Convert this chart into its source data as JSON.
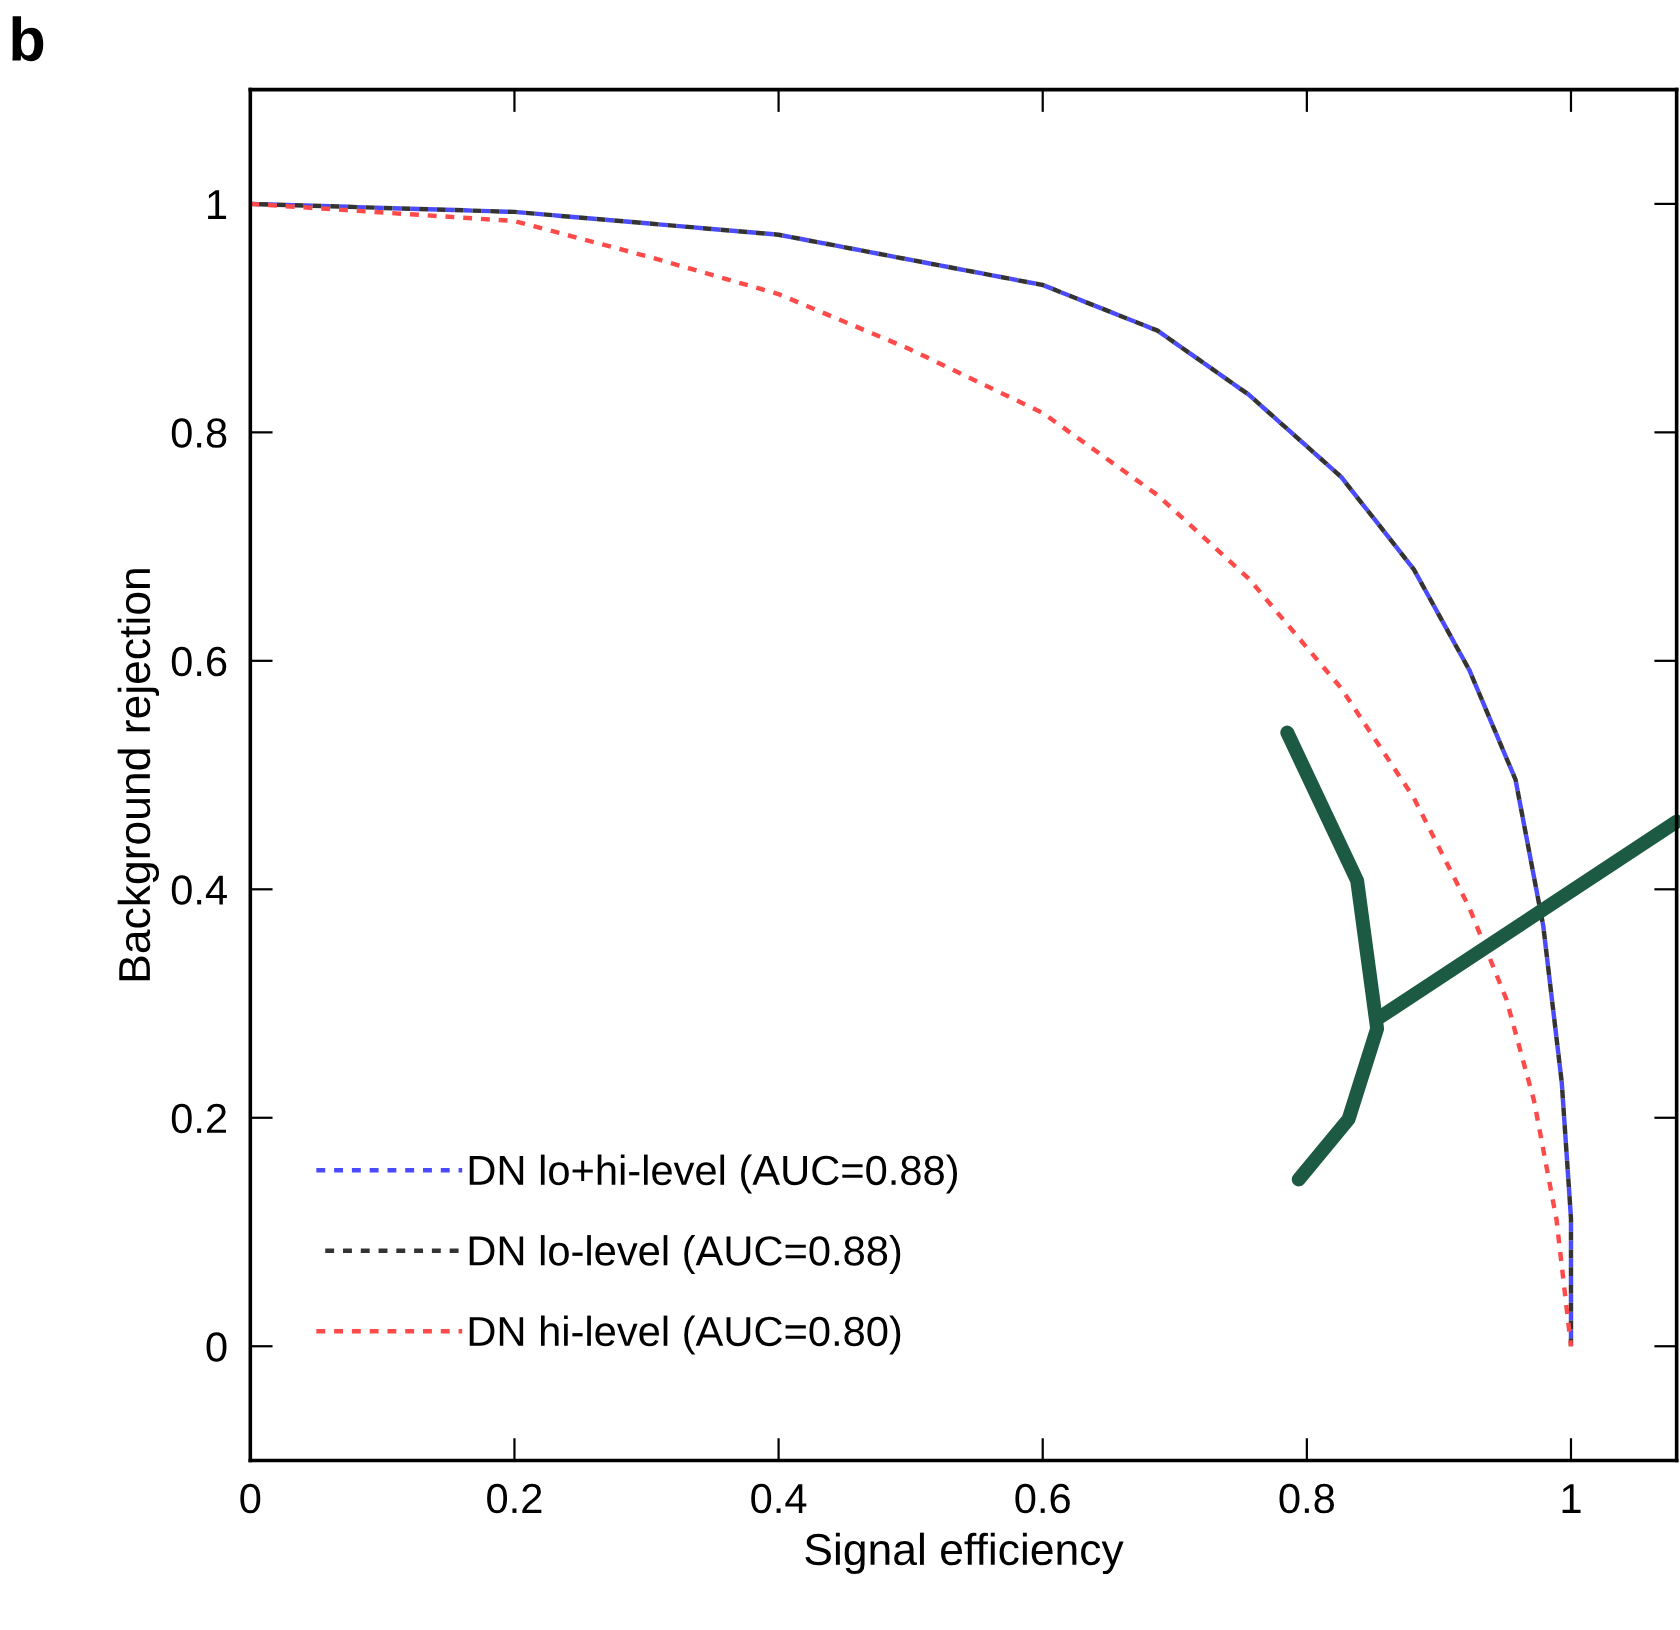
{
  "chart_data": {
    "type": "line",
    "xlabel": "Signal efficiency",
    "ylabel": "Background rejection",
    "annotations": [
      "b"
    ],
    "xlim": [
      0,
      1.08
    ],
    "ylim": [
      -0.1,
      1.1
    ],
    "xticks": [
      0,
      0.2,
      0.4,
      0.6,
      0.8,
      1
    ],
    "yticks": [
      0,
      0.2,
      0.4,
      0.6,
      0.8,
      1
    ],
    "grid": false,
    "legend": "bottom left",
    "line_style": "dashed",
    "marker": "none",
    "x": [
      0,
      0.2,
      0.4,
      0.6,
      0.687,
      0.756,
      0.826,
      0.881,
      0.923,
      0.958,
      0.979,
      0.993,
      1.0,
      1.0
    ],
    "series": [
      {
        "name": "DN lo+hi-level (AUC=0.88)",
        "color": "#4a4aff",
        "values": [
          1,
          0.993,
          0.973,
          0.929,
          0.889,
          0.833,
          0.761,
          0.68,
          0.592,
          0.496,
          0.368,
          0.231,
          0.112,
          0
        ]
      },
      {
        "name": "DN lo-level (AUC=0.88)",
        "color": "#333333",
        "values": [
          1,
          0.993,
          0.973,
          0.929,
          0.889,
          0.833,
          0.761,
          0.68,
          0.592,
          0.496,
          0.368,
          0.231,
          0.112,
          0
        ]
      },
      {
        "name": "DN hi-level (AUC=0.80)",
        "color": "#ff4a4a",
        "x": [
          0,
          0.2,
          0.304,
          0.4,
          0.499,
          0.6,
          0.687,
          0.756,
          0.826,
          0.881,
          0.923,
          0.951,
          0.972,
          0.989,
          1.0
        ],
        "values": [
          1,
          0.985,
          0.953,
          0.921,
          0.873,
          0.817,
          0.745,
          0.672,
          0.576,
          0.48,
          0.384,
          0.304,
          0.215,
          0.111,
          0
        ]
      }
    ]
  }
}
